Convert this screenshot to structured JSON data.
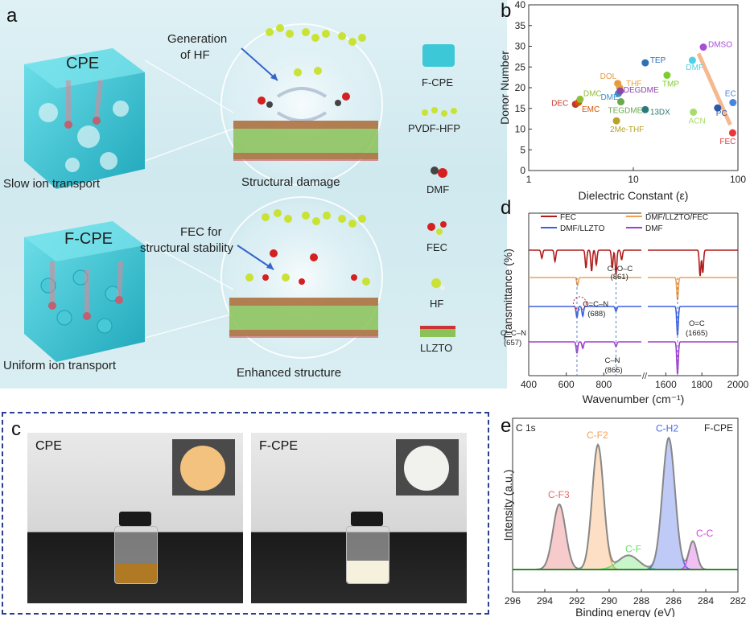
{
  "panel_letters": {
    "a": "a",
    "b": "b",
    "c": "c",
    "d": "d",
    "e": "e"
  },
  "panel_a": {
    "cpe_title": "CPE",
    "fcpe_title": "F-CPE",
    "slow_transport": "Slow ion transport",
    "uniform_transport": "Uniform ion transport",
    "generation_hf": [
      "Generation",
      "of HF"
    ],
    "fec_stability": [
      "FEC for",
      "structural stability"
    ],
    "structural_damage": "Structural damage",
    "enhanced_structure": "Enhanced structure",
    "legend": [
      "F-CPE",
      "PVDF-HFP",
      "DMF",
      "FEC",
      "HF",
      "LLZTO"
    ],
    "colors": {
      "cube": "#3cc8d6",
      "chain": "#c9e234",
      "oxygen": "#d42020",
      "lattice": "#7ab648"
    }
  },
  "panel_c": {
    "cpe_label": "CPE",
    "fcpe_label": "F-CPE",
    "colors": {
      "cpe_liquid": "#b07a25",
      "fcpe_liquid": "#f6f1dc",
      "cpe_membrane": "#f2c27e",
      "fcpe_membrane": "#f1f2ee"
    }
  },
  "chart_data": [
    {
      "type": "scatter",
      "panel": "b",
      "xlabel": "Dielectric Constant (ε)",
      "ylabel": "Donor Number",
      "xscale": "log",
      "xlim": [
        1,
        100
      ],
      "ylim": [
        0,
        40
      ],
      "xticks": [
        "1",
        "10",
        "100"
      ],
      "yticks": [
        "0",
        "5",
        "10",
        "15",
        "20",
        "25",
        "30",
        "35",
        "40"
      ],
      "points": [
        {
          "label": "DEC",
          "x": 2.8,
          "y": 16.0,
          "color": "#c0392b"
        },
        {
          "label": "EMC",
          "x": 3.0,
          "y": 16.5,
          "color": "#d35400"
        },
        {
          "label": "DMC",
          "x": 3.1,
          "y": 17.2,
          "color": "#8fbf3a"
        },
        {
          "label": "DOL",
          "x": 7.1,
          "y": 21.0,
          "color": "#e69a3c"
        },
        {
          "label": "THF",
          "x": 7.4,
          "y": 20.0,
          "color": "#e6a23c"
        },
        {
          "label": "DME",
          "x": 7.2,
          "y": 18.6,
          "color": "#3a8fc4"
        },
        {
          "label": "DEGDME",
          "x": 7.5,
          "y": 19.2,
          "color": "#8e44ad"
        },
        {
          "label": "TEGDME",
          "x": 7.6,
          "y": 16.6,
          "color": "#6aa84f"
        },
        {
          "label": "2Me-THF",
          "x": 6.9,
          "y": 12.0,
          "color": "#b8a22a"
        },
        {
          "label": "TEP",
          "x": 13.0,
          "y": 26.0,
          "color": "#2e6fb5"
        },
        {
          "label": "13DX",
          "x": 13.0,
          "y": 14.7,
          "color": "#2b7a78"
        },
        {
          "label": "TMP",
          "x": 21.0,
          "y": 23.0,
          "color": "#7ccd2e"
        },
        {
          "label": "ACN",
          "x": 37.5,
          "y": 14.1,
          "color": "#a7dd6b"
        },
        {
          "label": "DMF",
          "x": 36.7,
          "y": 26.6,
          "color": "#4fd0e8"
        },
        {
          "label": "DMSO",
          "x": 46.7,
          "y": 29.8,
          "color": "#a64fd6"
        },
        {
          "label": "PC",
          "x": 64.0,
          "y": 15.1,
          "color": "#2d5aa6"
        },
        {
          "label": "EC",
          "x": 89.6,
          "y": 16.4,
          "color": "#4b84e0"
        },
        {
          "label": "FEC",
          "x": 89.0,
          "y": 9.1,
          "color": "#e8393a"
        }
      ]
    },
    {
      "type": "line",
      "panel": "d",
      "xlabel": "Wavenumber (cm⁻¹)",
      "ylabel": "Transmittance (%)",
      "xticks": [
        "400",
        "600",
        "800",
        "1600",
        "1800",
        "2000"
      ],
      "broken_axis": [
        [
          400,
          1000
        ],
        [
          1500,
          2000
        ]
      ],
      "series": [
        {
          "name": "FEC",
          "color": "#b01c1c"
        },
        {
          "name": "DMF/LLZTO/FEC",
          "color": "#f0a050"
        },
        {
          "name": "DMF/LLZTO",
          "color": "#3a60e0"
        },
        {
          "name": "DMF",
          "color": "#a23ccf"
        }
      ],
      "annotations": [
        "C–O–C",
        "(861)",
        "O=C–N",
        "(688)",
        "O=C–N",
        "(657)",
        "O=C",
        "(1665)",
        "C–N",
        "(865)"
      ]
    },
    {
      "type": "area",
      "panel": "e",
      "title_left": "C 1s",
      "title_right": "F-CPE",
      "xlabel": "Binding energy (eV)",
      "ylabel": "Intensity (a.u.)",
      "xlim": [
        296,
        282
      ],
      "xticks": [
        "296",
        "294",
        "292",
        "290",
        "288",
        "286",
        "284",
        "282"
      ],
      "peaks": [
        {
          "label": "C-F3",
          "center": 293.1,
          "height": 0.46,
          "width": 0.55,
          "color": "#e8676a"
        },
        {
          "label": "C-F2",
          "center": 290.7,
          "height": 0.88,
          "width": 0.5,
          "color": "#f5a25a"
        },
        {
          "label": "C-F",
          "center": 288.8,
          "height": 0.1,
          "width": 0.9,
          "color": "#67e067"
        },
        {
          "label": "C-H2",
          "center": 286.3,
          "height": 0.93,
          "width": 0.55,
          "color": "#4a68e8"
        },
        {
          "label": "C-C",
          "center": 284.8,
          "height": 0.2,
          "width": 0.35,
          "color": "#d04ad8"
        }
      ]
    }
  ]
}
